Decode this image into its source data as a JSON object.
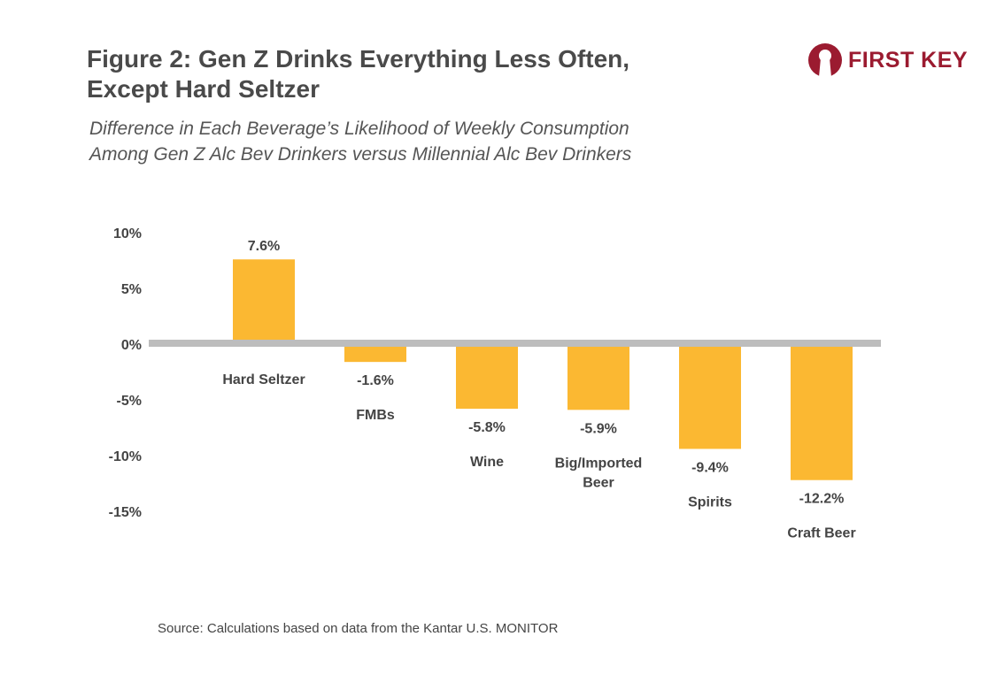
{
  "title_line1": "Figure 2: Gen Z Drinks Everything Less Often,",
  "title_line2": "Except Hard Seltzer",
  "subtitle_line1": "Difference in Each Beverage’s Likelihood of Weekly Consumption",
  "subtitle_line2": "Among Gen Z Alc Bev Drinkers versus Millennial Alc Bev Drinkers",
  "logo": {
    "text": "FIRST KEY",
    "color": "#9b1b30"
  },
  "source": "Source: Calculations based on data from the Kantar U.S. MONITOR",
  "chart_data": {
    "type": "bar",
    "categories": [
      "Hard Seltzer",
      "FMBs",
      "Wine",
      "Big/Imported Beer",
      "Spirits",
      "Craft Beer"
    ],
    "category_lines": [
      [
        "Hard Seltzer"
      ],
      [
        "FMBs"
      ],
      [
        "Wine"
      ],
      [
        "Big/Imported",
        "Beer"
      ],
      [
        "Spirits"
      ],
      [
        "Craft Beer"
      ]
    ],
    "values": [
      7.6,
      -1.6,
      -5.8,
      -5.9,
      -9.4,
      -12.2
    ],
    "data_labels": [
      "7.6%",
      "-1.6%",
      "-5.8%",
      "-5.9%",
      "-9.4%",
      "-12.2%"
    ],
    "yticks": [
      10,
      5,
      0,
      -5,
      -10,
      -15
    ],
    "ytick_labels": [
      "10%",
      "5%",
      "0%",
      "-5%",
      "-10%",
      "-15%"
    ],
    "ylim": [
      -15,
      10
    ],
    "grid": false,
    "bar_color": "#fbb832",
    "zero_line_color": "#bdbdbd"
  }
}
